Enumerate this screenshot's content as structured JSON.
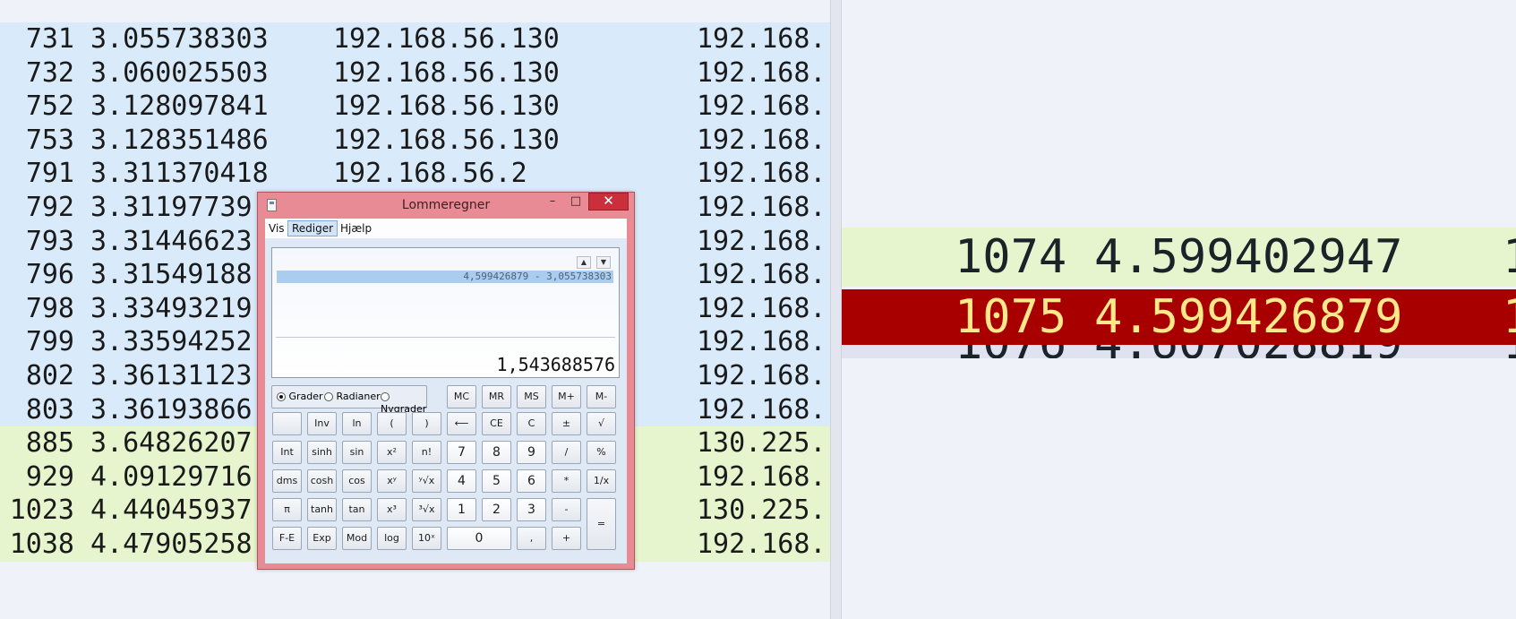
{
  "packet_list": {
    "rows": [
      {
        "no": "731",
        "time": "3.055738303",
        "src": "192.168.56.130",
        "dst": "192.168.",
        "color": "blue"
      },
      {
        "no": "732",
        "time": "3.060025503",
        "src": "192.168.56.130",
        "dst": "192.168.",
        "color": "blue"
      },
      {
        "no": "752",
        "time": "3.128097841",
        "src": "192.168.56.130",
        "dst": "192.168.",
        "color": "blue"
      },
      {
        "no": "753",
        "time": "3.128351486",
        "src": "192.168.56.130",
        "dst": "192.168.",
        "color": "blue"
      },
      {
        "no": "791",
        "time": "3.311370418",
        "src": "192.168.56.2",
        "dst": "192.168.",
        "color": "blue"
      },
      {
        "no": "792",
        "time": "3.31197739",
        "src": "",
        "dst": "192.168.",
        "color": "blue"
      },
      {
        "no": "793",
        "time": "3.31446623",
        "src": "",
        "dst": "192.168.",
        "color": "blue"
      },
      {
        "no": "796",
        "time": "3.31549188",
        "src": "",
        "dst": "192.168.",
        "color": "blue"
      },
      {
        "no": "798",
        "time": "3.33493219",
        "src": "",
        "dst": "192.168.",
        "color": "blue"
      },
      {
        "no": "799",
        "time": "3.33594252",
        "src": "",
        "dst": "192.168.",
        "color": "blue"
      },
      {
        "no": "802",
        "time": "3.36131123",
        "src": "",
        "dst": "192.168.",
        "color": "blue"
      },
      {
        "no": "803",
        "time": "3.36193866",
        "src": "",
        "dst": "192.168.",
        "color": "blue"
      },
      {
        "no": "885",
        "time": "3.64826207",
        "src": "",
        "dst": "130.225.",
        "color": "green"
      },
      {
        "no": "929",
        "time": "4.09129716",
        "src": "",
        "dst": "192.168.",
        "color": "green"
      },
      {
        "no": "1023",
        "time": "4.44045937",
        "src": "",
        "dst": "130.225.",
        "color": "green"
      },
      {
        "no": "1038",
        "time": "4.47905258",
        "src": "",
        "dst": "192.168.",
        "color": "green"
      }
    ]
  },
  "zoom_pane": {
    "row1": {
      "no": "1074",
      "time": "4.599402947",
      "extra": "1"
    },
    "row2": {
      "no": "1075",
      "time": "4.599426879",
      "extra": "1"
    },
    "row3": {
      "no": "1076",
      "time": "4.607028819",
      "extra": "1"
    }
  },
  "calculator": {
    "title": "Lommeregner",
    "window_controls": {
      "minimize": "–",
      "maximize": "□",
      "close": "✕"
    },
    "menu": [
      "Vis",
      "Rediger",
      "Hjælp"
    ],
    "history_expression": "4,599426879 - 3,055738303",
    "history_up": "▲",
    "history_down": "▼",
    "result": "1,543688576",
    "angle_modes": [
      "Grader",
      "Radianer",
      "Nygrader"
    ],
    "memory_buttons": [
      "MC",
      "MR",
      "MS",
      "M+",
      "M-"
    ],
    "row1": [
      "",
      "Inv",
      "ln",
      "(",
      ")",
      "⟵",
      "CE",
      "C",
      "±",
      "√"
    ],
    "row2": [
      "Int",
      "sinh",
      "sin",
      "x²",
      "n!",
      "7",
      "8",
      "9",
      "/",
      "%"
    ],
    "row3": [
      "dms",
      "cosh",
      "cos",
      "xʸ",
      "ʸ√x",
      "4",
      "5",
      "6",
      "*",
      "1/x"
    ],
    "row4": [
      "π",
      "tanh",
      "tan",
      "x³",
      "³√x",
      "1",
      "2",
      "3",
      "-"
    ],
    "row5": [
      "F-E",
      "Exp",
      "Mod",
      "log",
      "10ˣ",
      "0",
      ",",
      "+"
    ],
    "equals": "="
  }
}
